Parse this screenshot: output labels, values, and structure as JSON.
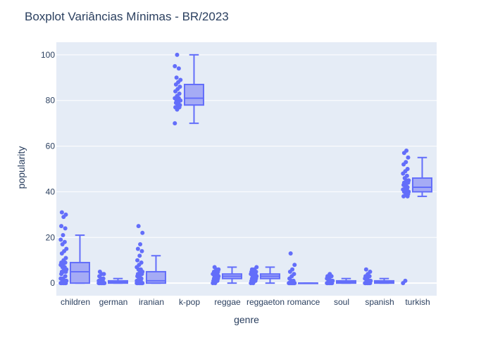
{
  "chart_data": {
    "type": "box",
    "title": "Boxplot Variâncias Mínimas - BR/2023",
    "xlabel": "genre",
    "ylabel": "popularity",
    "ylim": [
      -5.5,
      105.5
    ],
    "yticks": [
      0,
      20,
      40,
      60,
      80,
      100
    ],
    "grid": true,
    "colors": {
      "plot_bg": "#E5ECF6",
      "grid": "#FFFFFF",
      "box_line": "#636EFA",
      "box_fill": "#A5ABF5",
      "point": "#636EFA",
      "text": "#2A3F5F"
    },
    "categories": [
      "children",
      "german",
      "iranian",
      "k-pop",
      "reggae",
      "reggaeton",
      "romance",
      "soul",
      "spanish",
      "turkish"
    ],
    "boxes": [
      {
        "category": "children",
        "min": 0,
        "q1": 0,
        "median": 5,
        "q3": 9,
        "max": 21,
        "points": [
          0,
          0,
          0,
          0,
          0,
          0,
          0,
          0,
          1,
          1,
          1,
          2,
          2,
          3,
          4,
          5,
          5,
          5,
          6,
          6,
          7,
          7,
          8,
          8,
          9,
          9,
          10,
          11,
          13,
          14,
          15,
          17,
          18,
          19,
          21,
          24,
          25,
          29,
          30,
          31
        ]
      },
      {
        "category": "german",
        "min": 0,
        "q1": 0,
        "median": 0.5,
        "q3": 1,
        "max": 2,
        "points": [
          0,
          0,
          0,
          0,
          0,
          0,
          0,
          0,
          0,
          1,
          1,
          1,
          2,
          2,
          3,
          4,
          4,
          5
        ]
      },
      {
        "category": "iranian",
        "min": 0,
        "q1": 0,
        "median": 1,
        "q3": 5,
        "max": 12,
        "points": [
          0,
          0,
          0,
          0,
          0,
          0,
          0,
          0,
          0,
          1,
          1,
          1,
          2,
          2,
          3,
          3,
          4,
          4,
          5,
          5,
          6,
          6,
          7,
          8,
          9,
          10,
          12,
          14,
          15,
          17,
          22,
          25
        ]
      },
      {
        "category": "k-pop",
        "min": 70,
        "q1": 78,
        "median": 81,
        "q3": 87,
        "max": 100,
        "points": [
          70,
          76,
          77,
          77,
          78,
          78,
          79,
          79,
          80,
          80,
          81,
          81,
          82,
          83,
          84,
          85,
          86,
          87,
          88,
          89,
          90,
          94,
          95,
          100
        ]
      },
      {
        "category": "reggae",
        "min": 0,
        "q1": 2,
        "median": 3,
        "q3": 4,
        "max": 7,
        "points": [
          0,
          0,
          1,
          1,
          2,
          2,
          2,
          3,
          3,
          3,
          3,
          4,
          4,
          4,
          4,
          5,
          5,
          5,
          6,
          6,
          7
        ]
      },
      {
        "category": "reggaeton",
        "min": 0,
        "q1": 2,
        "median": 3,
        "q3": 4,
        "max": 7,
        "points": [
          0,
          0,
          1,
          1,
          2,
          2,
          2,
          3,
          3,
          3,
          3,
          4,
          4,
          4,
          5,
          5,
          5,
          6,
          6,
          7
        ]
      },
      {
        "category": "romance",
        "min": 0,
        "q1": 0,
        "median": 0,
        "q3": 0,
        "max": 0,
        "points": [
          0,
          0,
          0,
          0,
          0,
          0,
          0,
          0,
          0,
          0,
          0,
          0,
          1,
          1,
          2,
          3,
          4,
          5,
          6,
          8,
          13
        ]
      },
      {
        "category": "soul",
        "min": 0,
        "q1": 0,
        "median": 0.5,
        "q3": 1,
        "max": 2,
        "points": [
          0,
          0,
          0,
          0,
          0,
          0,
          0,
          0,
          1,
          1,
          1,
          2,
          2,
          3,
          3,
          4
        ]
      },
      {
        "category": "spanish",
        "min": 0,
        "q1": 0,
        "median": 0.5,
        "q3": 1,
        "max": 2,
        "points": [
          0,
          0,
          0,
          0,
          0,
          0,
          0,
          0,
          1,
          1,
          1,
          2,
          2,
          3,
          3,
          4,
          5,
          6
        ]
      },
      {
        "category": "turkish",
        "min": 38,
        "q1": 40,
        "median": 42,
        "q3": 46,
        "max": 55,
        "points": [
          0,
          1,
          38,
          38,
          39,
          39,
          40,
          40,
          40,
          41,
          41,
          41,
          42,
          42,
          43,
          43,
          44,
          44,
          45,
          45,
          46,
          47,
          48,
          49,
          50,
          52,
          53,
          55,
          57,
          58
        ]
      }
    ]
  }
}
